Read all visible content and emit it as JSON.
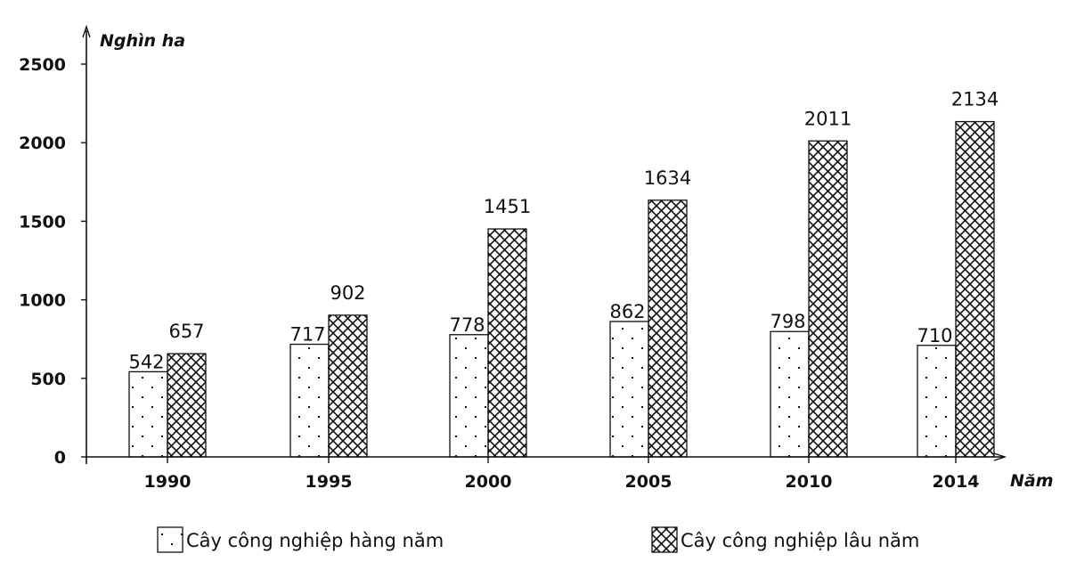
{
  "chart_data": {
    "type": "bar",
    "title": "",
    "ylabel": "Nghìn ha",
    "xlabel": "Năm",
    "ylim": [
      0,
      2500
    ],
    "yticks": [
      0,
      500,
      1000,
      1500,
      2000,
      2500
    ],
    "categories": [
      "1990",
      "1995",
      "2000",
      "2005",
      "2010",
      "2014"
    ],
    "series": [
      {
        "name": "Cây công nghiệp hàng năm",
        "pattern": "dots",
        "values": [
          542,
          717,
          778,
          862,
          798,
          710
        ]
      },
      {
        "name": "Cây công nghiệp lâu năm",
        "pattern": "crosshatch",
        "values": [
          657,
          902,
          1451,
          1634,
          2011,
          2134
        ]
      }
    ],
    "grid": false,
    "legend": "bottom"
  }
}
